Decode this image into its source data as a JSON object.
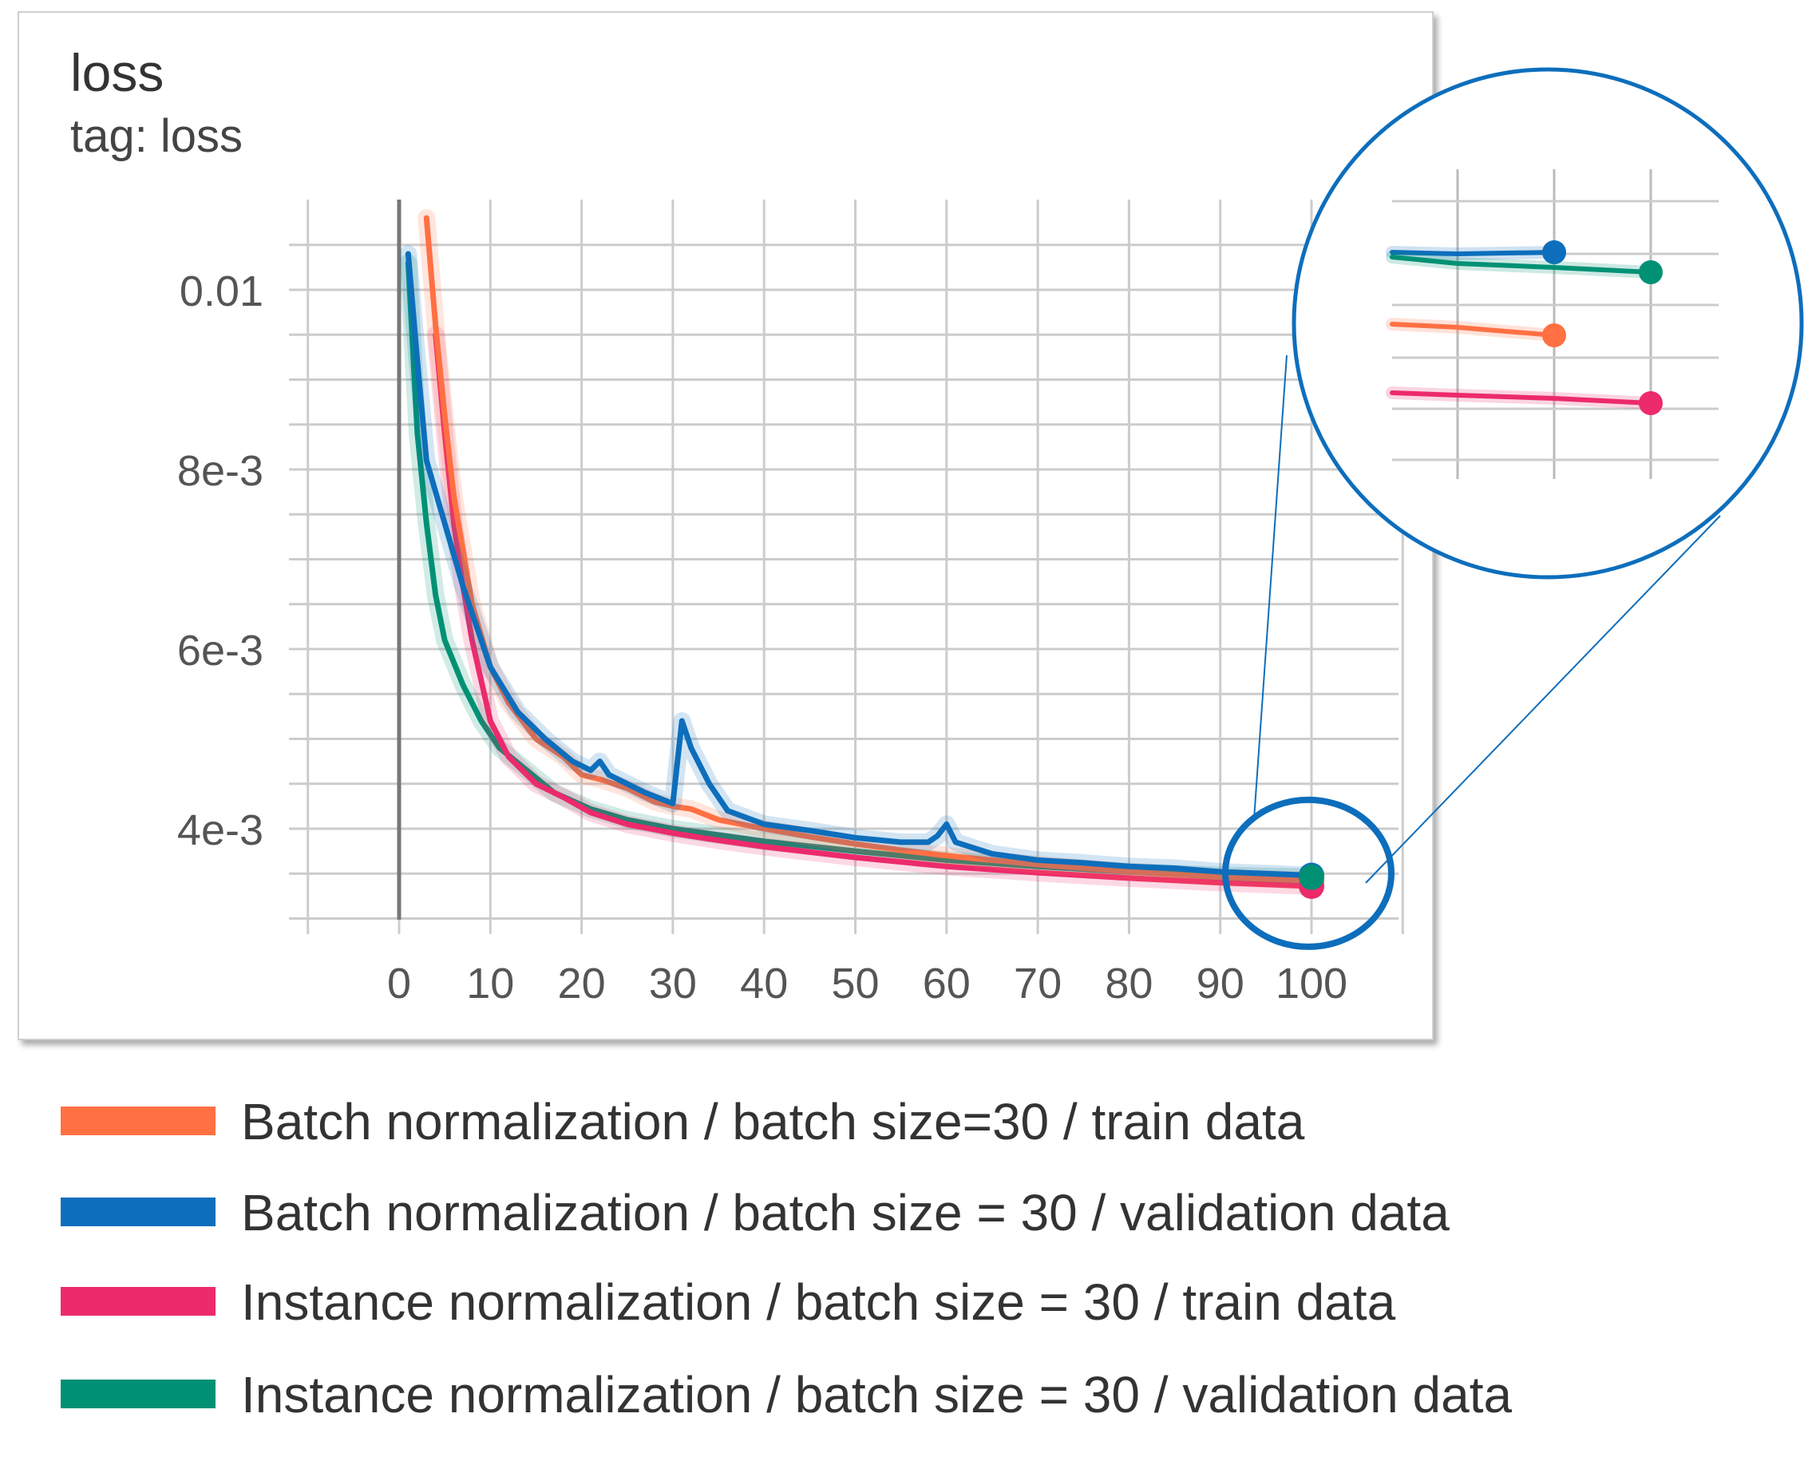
{
  "card": {
    "title": "loss",
    "subtitle": "tag: loss"
  },
  "chart_data": {
    "type": "line",
    "title": "loss",
    "subtitle": "tag: loss",
    "xlabel": "",
    "ylabel": "",
    "xlim": [
      -10,
      110
    ],
    "ylim": [
      0.0028,
      0.0108
    ],
    "x_ticks": [
      0,
      10,
      20,
      30,
      40,
      50,
      60,
      70,
      80,
      90,
      100
    ],
    "x_tick_labels": [
      "0",
      "10",
      "20",
      "30",
      "40",
      "50",
      "60",
      "70",
      "80",
      "90",
      "100"
    ],
    "y_ticks": [
      0.004,
      0.006,
      0.008,
      0.01
    ],
    "y_tick_labels": [
      "4e-3",
      "6e-3",
      "8e-3",
      "0.01"
    ],
    "grid": true,
    "legend_position": "bottom",
    "series": [
      {
        "name": "Batch normalization / batch size=30 / train data",
        "color": "#ff7043",
        "points": [
          [
            3,
            0.0108
          ],
          [
            4,
            0.0096
          ],
          [
            5,
            0.0086
          ],
          [
            6,
            0.0077
          ],
          [
            7,
            0.0071
          ],
          [
            8,
            0.0065
          ],
          [
            10,
            0.0058
          ],
          [
            12,
            0.0054
          ],
          [
            15,
            0.005
          ],
          [
            18,
            0.0048
          ],
          [
            20,
            0.0046
          ],
          [
            22,
            0.00455
          ],
          [
            25,
            0.00445
          ],
          [
            28,
            0.0043
          ],
          [
            30,
            0.00425
          ],
          [
            32,
            0.00422
          ],
          [
            35,
            0.0041
          ],
          [
            40,
            0.004
          ],
          [
            45,
            0.00391
          ],
          [
            50,
            0.00383
          ],
          [
            55,
            0.00376
          ],
          [
            60,
            0.0037
          ],
          [
            65,
            0.00365
          ],
          [
            70,
            0.0036
          ],
          [
            75,
            0.00356
          ],
          [
            80,
            0.00352
          ],
          [
            85,
            0.00349
          ],
          [
            90,
            0.00346
          ],
          [
            95,
            0.00344
          ],
          [
            100,
            0.00342
          ]
        ]
      },
      {
        "name": "Batch normalization / batch size = 30 / validation data",
        "color": "#0d6ebc",
        "points": [
          [
            1,
            0.0104
          ],
          [
            2,
            0.0092
          ],
          [
            3,
            0.0081
          ],
          [
            5,
            0.0074
          ],
          [
            7,
            0.0067
          ],
          [
            10,
            0.0058
          ],
          [
            13,
            0.0053
          ],
          [
            16,
            0.005
          ],
          [
            19,
            0.00475
          ],
          [
            21,
            0.00465
          ],
          [
            22,
            0.00475
          ],
          [
            23,
            0.0046
          ],
          [
            25,
            0.0045
          ],
          [
            27,
            0.0044
          ],
          [
            29,
            0.00432
          ],
          [
            30,
            0.00428
          ],
          [
            31,
            0.0052
          ],
          [
            32,
            0.0049
          ],
          [
            34,
            0.0045
          ],
          [
            36,
            0.0042
          ],
          [
            40,
            0.00405
          ],
          [
            45,
            0.00398
          ],
          [
            50,
            0.0039
          ],
          [
            55,
            0.00385
          ],
          [
            58,
            0.00385
          ],
          [
            59,
            0.00392
          ],
          [
            60,
            0.00405
          ],
          [
            61,
            0.00385
          ],
          [
            65,
            0.00372
          ],
          [
            70,
            0.00365
          ],
          [
            75,
            0.00362
          ],
          [
            80,
            0.00358
          ],
          [
            85,
            0.00356
          ],
          [
            90,
            0.00352
          ],
          [
            95,
            0.0035
          ],
          [
            100,
            0.00348
          ]
        ]
      },
      {
        "name": "Instance normalization / batch size = 30 / train data",
        "color": "#ec2a6c",
        "points": [
          [
            4,
            0.0095
          ],
          [
            5,
            0.0084
          ],
          [
            6,
            0.0074
          ],
          [
            7,
            0.0067
          ],
          [
            8,
            0.0061
          ],
          [
            10,
            0.0052
          ],
          [
            12,
            0.0048
          ],
          [
            15,
            0.0045
          ],
          [
            18,
            0.00435
          ],
          [
            21,
            0.00418
          ],
          [
            25,
            0.00405
          ],
          [
            30,
            0.00395
          ],
          [
            35,
            0.00387
          ],
          [
            40,
            0.0038
          ],
          [
            50,
            0.00368
          ],
          [
            60,
            0.00358
          ],
          [
            70,
            0.00351
          ],
          [
            80,
            0.00345
          ],
          [
            90,
            0.0034
          ],
          [
            100,
            0.00336
          ]
        ]
      },
      {
        "name": "Instance normalization / batch size = 30 / validation data",
        "color": "#009175",
        "points": [
          [
            1,
            0.0103
          ],
          [
            2,
            0.0084
          ],
          [
            3,
            0.0074
          ],
          [
            4,
            0.0066
          ],
          [
            5,
            0.0061
          ],
          [
            7,
            0.0056
          ],
          [
            9,
            0.0052
          ],
          [
            11,
            0.0049
          ],
          [
            14,
            0.00465
          ],
          [
            17,
            0.0044
          ],
          [
            21,
            0.00422
          ],
          [
            25,
            0.0041
          ],
          [
            30,
            0.004
          ],
          [
            35,
            0.00393
          ],
          [
            40,
            0.00386
          ],
          [
            50,
            0.00375
          ],
          [
            60,
            0.00365
          ],
          [
            70,
            0.00358
          ],
          [
            80,
            0.00352
          ],
          [
            90,
            0.00348
          ],
          [
            100,
            0.00346
          ]
        ]
      }
    ],
    "inset_zoom": {
      "description_region": "x from 98 to 101",
      "end_points": [
        {
          "series": "Batch normalization / batch size = 30 / validation data",
          "x_index": 1
        },
        {
          "series": "Instance normalization / batch size = 30 / validation data",
          "x_index": 2
        },
        {
          "series": "Batch normalization / batch size=30 / train data",
          "x_index": 1
        },
        {
          "series": "Instance normalization / batch size = 30 / train data",
          "x_index": 2
        }
      ]
    }
  },
  "legend": {
    "items": [
      {
        "label": "Batch normalization / batch size=30 / train data",
        "color": "#ff7043"
      },
      {
        "label": "Batch normalization / batch size = 30 / validation data",
        "color": "#0d6ebc"
      },
      {
        "label": "Instance normalization / batch size = 30 / train data",
        "color": "#ec2a6c"
      },
      {
        "label": "Instance normalization / batch size = 30 / validation data",
        "color": "#009175"
      }
    ]
  },
  "colors": {
    "highlight": "#0d6ebc",
    "grid": "#cccccc",
    "axis_text": "#555555"
  }
}
